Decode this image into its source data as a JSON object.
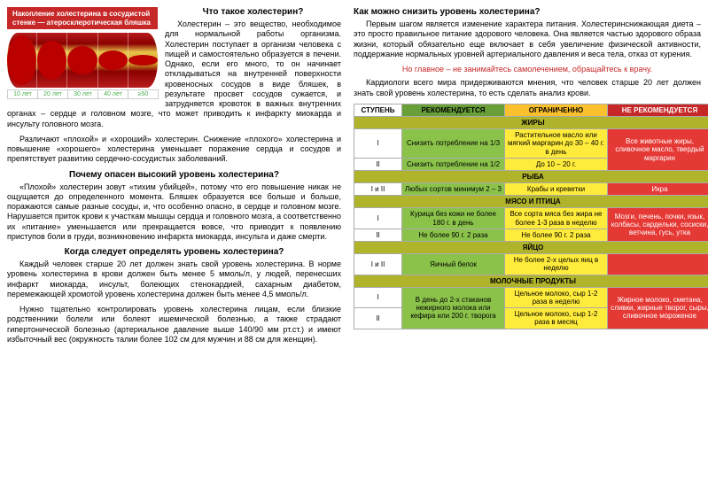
{
  "banner": "Накопление холестерина в сосудистой стенке — атеросклеротическая бляшка",
  "timeline": [
    "10 лет",
    "20 лет",
    "30 лет",
    "40 лет",
    "≥50"
  ],
  "left": {
    "h1": "Что такое холестерин?",
    "p1": "Холестерин – это вещество, необходимое для нормальной работы организма. Холестерин поступает в организм человека с пищей и самостоятельно образуется в печени. Однако, если его много, то он начинает откладываться на внутренней поверхности кровеносных сосудов в виде бляшек, в результате просвет сосудов сужается, и затрудняется кровоток в важных внутренних органах – сердце и головном мозге, что может приводить к инфаркту миокарда и инсульту головного мозга.",
    "p2": "Различают «плохой» и «хороший» холестерин. Снижение «плохого» холестерина и повышение «хорошего» холестерина уменьшает поражение сердца и сосудов и препятствует развитию сердечно-сосудистых заболеваний.",
    "h2": "Почему опасен высокий уровень холестерина?",
    "p3": "«Плохой» холестерин зовут «тихим убийцей», потому что его повышение никак не ощущается до определенного момента. Бляшек образуется все больше и больше, поражаются самые разные сосуды, и, что особенно опасно, в сердце и головном мозге. Нарушается приток крови к участкам мышцы сердца и головного мозга, а соответственно их «питание» уменьшается или прекращается вовсе, что приводит к появлению приступов боли в груди, возникновению инфаркта миокарда, инсульта и даже смерти.",
    "h3": "Когда следует определять уровень холестерина?",
    "p4": "Каждый человек старше 20 лет должен знать свой уровень холестерина. В норме уровень холестерина в крови должен быть менее 5 ммоль/л, у людей, перенесших инфаркт миокарда, инсульт, болеющих стенокардией, сахарным диабетом, перемежающей хромотой уровень холестерина должен быть менее 4,5 ммоль/л.",
    "p5": "Нужно тщательно контролировать уровень холестерина лицам, если близкие родственники болели или болеют ишемической болезнью, а также страдают гипертонической болезнью (артериальное давление выше 140/90 мм рт.ст.) и имеют избыточный вес (окружность талии более 102 см для мужчин и 88 см для женщин)."
  },
  "right": {
    "h1": "Как можно снизить уровень холестерина?",
    "p1": "Первым шагом является изменение характера питания. Холестеринснижающая диета – это просто правильное питание здорового человека. Она является частью здорового образа жизни, который обязательно еще включает в себя увеличение физической активности, поддержание нормальных уровней артериального давления и веса тела, отказ от курения.",
    "warn": "Но главное – не занимайтесь самолечением, обращайтесь к врачу.",
    "p2": "Кардиологи всего мира придерживаются мнения, что человек старше 20 лет должен знать свой уровень холестерина, то есть сделать анализ крови."
  },
  "table": {
    "headers": [
      "СТУПЕНЬ",
      "РЕКОМЕНДУЕТСЯ",
      "ОГРАНИЧЕННО",
      "НЕ РЕКОМЕНДУЕТСЯ"
    ],
    "sections": [
      {
        "title": "ЖИРЫ",
        "rows": [
          [
            "I",
            "Снизить потребление на 1/3",
            "Растительное масло или мягкий маргарин до 30 – 40 г. в день",
            "Все животные жиры, сливочное масло, твердый маргарин"
          ],
          [
            "II",
            "Снизить потребление на 1/2",
            "До 10 – 20 г.",
            ""
          ]
        ],
        "rowspanRed": true
      },
      {
        "title": "РЫБА",
        "rows": [
          [
            "I и II",
            "Любых сортов минимум 2 – 3",
            "Крабы и креветки",
            "Икра"
          ]
        ]
      },
      {
        "title": "МЯСО И ПТИЦА",
        "rows": [
          [
            "I",
            "Курица без кожи не более 180 г. в день",
            "Все сорта мяса без жира не более 1-3 раза в неделю",
            "Мозги, печень, почки, язык, колбасы, сардельки, сосиски, ветчина, гусь, утка"
          ],
          [
            "II",
            "Не более 90 г. 2 раза",
            "Не более 90 г. 2 раза",
            ""
          ]
        ],
        "rowspanRed": true
      },
      {
        "title": "ЯЙЦО",
        "rows": [
          [
            "I и II",
            "Яичный белок",
            "Не более 2-х целых яиц в неделю",
            ""
          ]
        ]
      },
      {
        "title": "МОЛОЧНЫЕ ПРОДУКТЫ",
        "rows": [
          [
            "I",
            "В день до 2-х стаканов нежирного молока или кефира или 200 г. творога",
            "Цельное молоко, сыр 1-2 раза в неделю",
            "Жирное молоко, сметана, сливки, жирные творог, сыры, сливочное мороженое"
          ],
          [
            "II",
            "",
            "Цельное молоко, сыр 1-2 раза в месяц",
            ""
          ]
        ],
        "rowspanGreen": true,
        "rowspanRed": true
      }
    ]
  }
}
